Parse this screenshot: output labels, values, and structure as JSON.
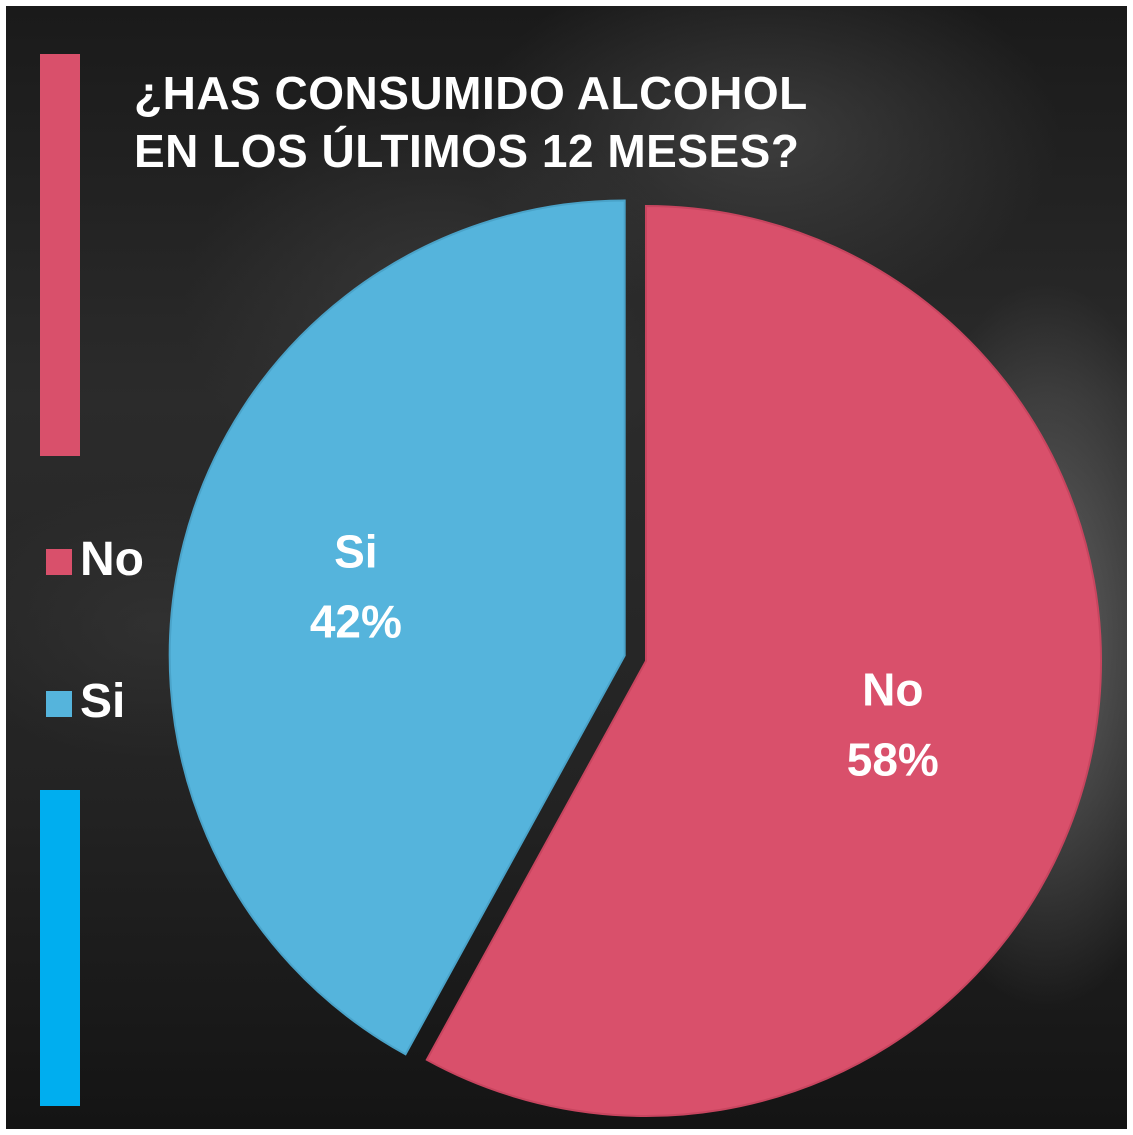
{
  "colors": {
    "no": "#d9506b",
    "si": "#55b4dc",
    "accent_top": "#d9506b",
    "accent_bottom": "#00aeef"
  },
  "chart_data": {
    "type": "pie",
    "title": [
      "¿HAS CONSUMIDO ALCOHOL",
      "EN LOS ÚLTIMOS 12 MESES?"
    ],
    "categories": [
      "No",
      "Si"
    ],
    "values": [
      58,
      42
    ],
    "value_labels": [
      "58%",
      "42%"
    ],
    "slice_labels": [
      "No",
      "Si"
    ],
    "legend": [
      "No",
      "Si"
    ],
    "legend_placement": "left"
  }
}
